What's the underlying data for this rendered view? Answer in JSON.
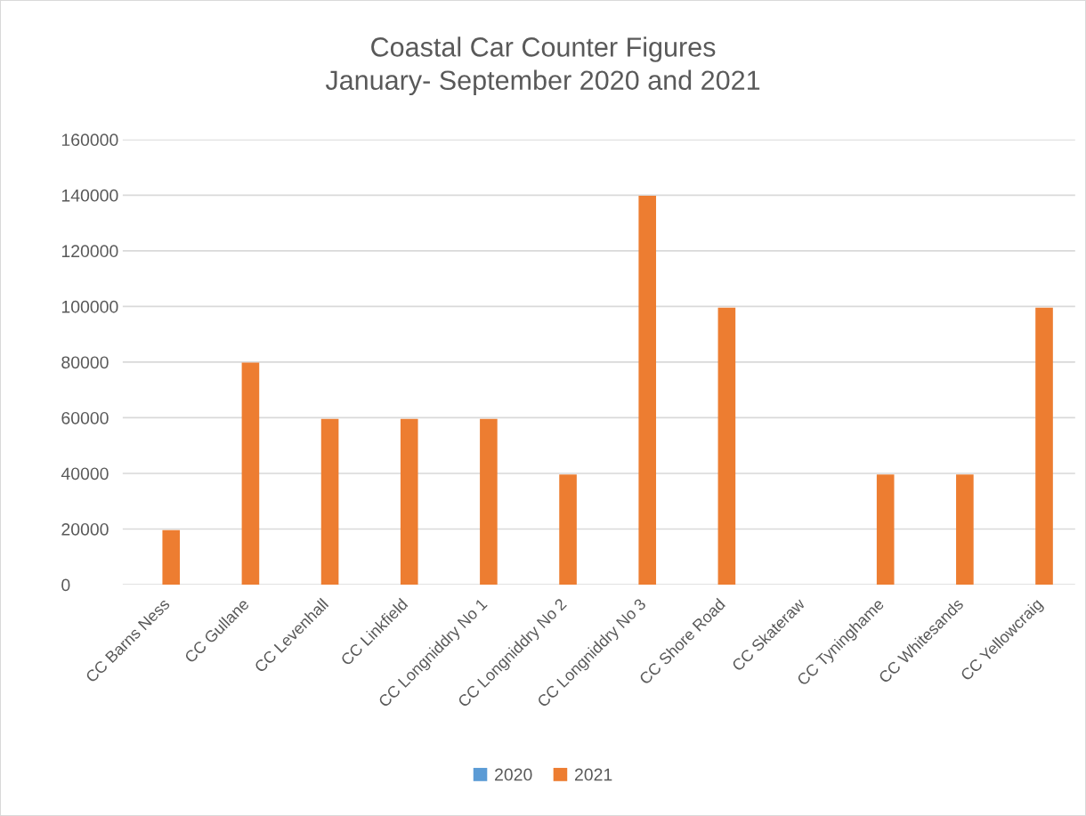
{
  "chart_data": {
    "type": "bar",
    "title": "Coastal Car Counter Figures\nJanuary- September 2020 and 2021",
    "categories": [
      "CC Barns Ness",
      "CC Gullane",
      "CC Levenhall",
      "CC Linkfield",
      "CC Longniddry No 1",
      "CC Longniddry No 2",
      "CC Longniddry No 3",
      "CC Shore Road",
      "CC Skateraw",
      "CC Tyninghame",
      "CC Whitesands",
      "CC Yellowcraig"
    ],
    "series": [
      {
        "name": "2020",
        "color": "#5b9bd5",
        "values": [
          0,
          0,
          0,
          0,
          0,
          0,
          0,
          0,
          0,
          0,
          0,
          0
        ]
      },
      {
        "name": "2021",
        "color": "#ed7d31",
        "values": [
          19600,
          79800,
          59600,
          59600,
          59600,
          39600,
          139800,
          99600,
          0,
          39600,
          39600,
          99600
        ]
      }
    ],
    "ylim": [
      0,
      160000
    ],
    "yticks": [
      0,
      20000,
      40000,
      60000,
      80000,
      100000,
      120000,
      140000,
      160000
    ],
    "grid": "y",
    "legend": "bottom"
  }
}
